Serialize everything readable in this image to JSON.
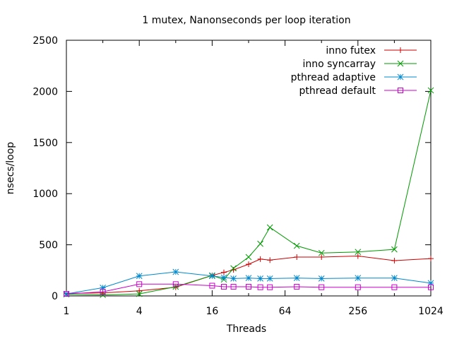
{
  "chart_data": {
    "type": "line",
    "title": "1 mutex, Nanonseconds per loop iteration",
    "xlabel": "Threads",
    "ylabel": "nsecs/loop",
    "x_scale": "log2",
    "xlim": [
      1,
      1024
    ],
    "ylim": [
      0,
      2500
    ],
    "x_ticks": [
      1,
      4,
      16,
      64,
      256,
      1024
    ],
    "y_ticks": [
      0,
      500,
      1000,
      1500,
      2000,
      2500
    ],
    "legend_position": "top-right",
    "grid": false,
    "x": [
      1,
      2,
      4,
      8,
      16,
      20,
      24,
      32,
      40,
      48,
      80,
      128,
      256,
      512,
      1024
    ],
    "series": [
      {
        "name": "inno futex",
        "color": "#cc0000",
        "marker": "plus",
        "values": [
          25,
          30,
          50,
          85,
          200,
          230,
          255,
          310,
          360,
          350,
          380,
          380,
          390,
          345,
          365
        ]
      },
      {
        "name": "inno syncarray",
        "color": "#009900",
        "marker": "cross",
        "values": [
          15,
          10,
          20,
          90,
          200,
          160,
          270,
          380,
          510,
          670,
          490,
          420,
          430,
          455,
          2010
        ]
      },
      {
        "name": "pthread adaptive",
        "color": "#0088cc",
        "marker": "star",
        "values": [
          20,
          80,
          195,
          235,
          195,
          180,
          170,
          175,
          170,
          170,
          175,
          170,
          175,
          175,
          125
        ]
      },
      {
        "name": "pthread default",
        "color": "#cc00cc",
        "marker": "square",
        "values": [
          20,
          40,
          115,
          115,
          100,
          90,
          90,
          90,
          85,
          85,
          90,
          85,
          85,
          85,
          85
        ]
      }
    ]
  }
}
